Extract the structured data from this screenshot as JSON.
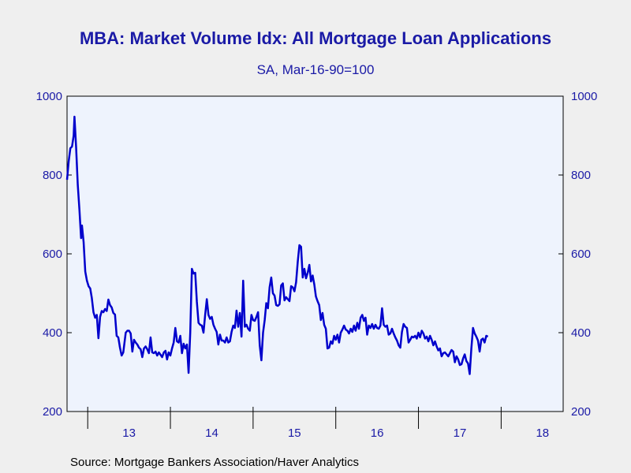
{
  "colors": {
    "background": "#efefef",
    "plot_area": "#eef3fd",
    "text": "#1a1aa6",
    "line": "#0000cc",
    "axis": "#000000"
  },
  "source": "Source:  Mortgage Bankers Association/Haver Analytics",
  "chart_data": {
    "type": "line",
    "title": "MBA: Market Volume Idx: All Mortgage Loan Applications",
    "subtitle": "SA, Mar-16-90=100",
    "xlabel": "",
    "ylabel": "",
    "x_range": [
      2012.75,
      2018.75
    ],
    "ylim": [
      200,
      1000
    ],
    "y_ticks": [
      200,
      400,
      600,
      800,
      1000
    ],
    "y_axis_sides": [
      "left",
      "right"
    ],
    "x_tick_labels": [
      "13",
      "14",
      "15",
      "16",
      "17",
      "18"
    ],
    "x_tick_positions": [
      2013.5,
      2014.5,
      2015.5,
      2016.5,
      2017.5,
      2018.5
    ],
    "x_year_boundaries": [
      2013,
      2014,
      2015,
      2016,
      2017,
      2018
    ],
    "grid": false,
    "legend": "none",
    "series": [
      {
        "color": "#0000cc",
        "points": [
          [
            2012.75,
            788
          ],
          [
            2012.77,
            835
          ],
          [
            2012.79,
            868
          ],
          [
            2012.81,
            872
          ],
          [
            2012.83,
            900
          ],
          [
            2012.84,
            948
          ],
          [
            2012.86,
            870
          ],
          [
            2012.88,
            775
          ],
          [
            2012.9,
            712
          ],
          [
            2012.92,
            640
          ],
          [
            2012.93,
            672
          ],
          [
            2012.95,
            630
          ],
          [
            2012.97,
            555
          ],
          [
            2012.99,
            532
          ],
          [
            2013.01,
            518
          ],
          [
            2013.03,
            512
          ],
          [
            2013.05,
            488
          ],
          [
            2013.07,
            452
          ],
          [
            2013.09,
            438
          ],
          [
            2013.11,
            445
          ],
          [
            2013.13,
            386
          ],
          [
            2013.15,
            440
          ],
          [
            2013.17,
            455
          ],
          [
            2013.19,
            452
          ],
          [
            2013.21,
            460
          ],
          [
            2013.23,
            455
          ],
          [
            2013.25,
            484
          ],
          [
            2013.27,
            470
          ],
          [
            2013.29,
            464
          ],
          [
            2013.31,
            450
          ],
          [
            2013.33,
            446
          ],
          [
            2013.35,
            392
          ],
          [
            2013.37,
            388
          ],
          [
            2013.39,
            362
          ],
          [
            2013.41,
            342
          ],
          [
            2013.43,
            350
          ],
          [
            2013.46,
            400
          ],
          [
            2013.48,
            405
          ],
          [
            2013.5,
            405
          ],
          [
            2013.52,
            398
          ],
          [
            2013.54,
            352
          ],
          [
            2013.56,
            382
          ],
          [
            2013.58,
            375
          ],
          [
            2013.6,
            370
          ],
          [
            2013.62,
            362
          ],
          [
            2013.64,
            358
          ],
          [
            2013.66,
            338
          ],
          [
            2013.68,
            360
          ],
          [
            2013.7,
            365
          ],
          [
            2013.72,
            358
          ],
          [
            2013.74,
            348
          ],
          [
            2013.76,
            388
          ],
          [
            2013.78,
            350
          ],
          [
            2013.8,
            348
          ],
          [
            2013.82,
            352
          ],
          [
            2013.84,
            342
          ],
          [
            2013.86,
            350
          ],
          [
            2013.88,
            344
          ],
          [
            2013.9,
            338
          ],
          [
            2013.92,
            350
          ],
          [
            2013.94,
            354
          ],
          [
            2013.96,
            332
          ],
          [
            2013.98,
            350
          ],
          [
            2014.0,
            342
          ],
          [
            2014.02,
            360
          ],
          [
            2014.04,
            375
          ],
          [
            2014.06,
            412
          ],
          [
            2014.08,
            378
          ],
          [
            2014.1,
            375
          ],
          [
            2014.12,
            392
          ],
          [
            2014.14,
            348
          ],
          [
            2014.16,
            372
          ],
          [
            2014.18,
            360
          ],
          [
            2014.2,
            370
          ],
          [
            2014.22,
            298
          ],
          [
            2014.24,
            400
          ],
          [
            2014.26,
            562
          ],
          [
            2014.28,
            550
          ],
          [
            2014.3,
            552
          ],
          [
            2014.32,
            478
          ],
          [
            2014.34,
            425
          ],
          [
            2014.36,
            420
          ],
          [
            2014.38,
            418
          ],
          [
            2014.4,
            400
          ],
          [
            2014.42,
            445
          ],
          [
            2014.44,
            485
          ],
          [
            2014.46,
            445
          ],
          [
            2014.48,
            435
          ],
          [
            2014.5,
            440
          ],
          [
            2014.52,
            420
          ],
          [
            2014.54,
            410
          ],
          [
            2014.56,
            402
          ],
          [
            2014.58,
            370
          ],
          [
            2014.6,
            395
          ],
          [
            2014.62,
            380
          ],
          [
            2014.64,
            380
          ],
          [
            2014.66,
            375
          ],
          [
            2014.68,
            388
          ],
          [
            2014.7,
            375
          ],
          [
            2014.72,
            378
          ],
          [
            2014.74,
            402
          ],
          [
            2014.76,
            418
          ],
          [
            2014.78,
            412
          ],
          [
            2014.8,
            456
          ],
          [
            2014.82,
            415
          ],
          [
            2014.84,
            450
          ],
          [
            2014.86,
            390
          ],
          [
            2014.88,
            532
          ],
          [
            2014.9,
            415
          ],
          [
            2014.92,
            420
          ],
          [
            2014.94,
            410
          ],
          [
            2014.96,
            405
          ],
          [
            2014.98,
            445
          ],
          [
            2015.0,
            432
          ],
          [
            2015.02,
            430
          ],
          [
            2015.04,
            440
          ],
          [
            2015.06,
            452
          ],
          [
            2015.08,
            368
          ],
          [
            2015.1,
            330
          ],
          [
            2015.12,
            400
          ],
          [
            2015.14,
            432
          ],
          [
            2015.16,
            475
          ],
          [
            2015.18,
            462
          ],
          [
            2015.2,
            515
          ],
          [
            2015.22,
            540
          ],
          [
            2015.24,
            500
          ],
          [
            2015.26,
            494
          ],
          [
            2015.28,
            470
          ],
          [
            2015.3,
            468
          ],
          [
            2015.32,
            472
          ],
          [
            2015.34,
            520
          ],
          [
            2015.36,
            525
          ],
          [
            2015.38,
            482
          ],
          [
            2015.4,
            490
          ],
          [
            2015.42,
            485
          ],
          [
            2015.44,
            480
          ],
          [
            2015.46,
            518
          ],
          [
            2015.48,
            515
          ],
          [
            2015.5,
            505
          ],
          [
            2015.52,
            528
          ],
          [
            2015.54,
            580
          ],
          [
            2015.56,
            622
          ],
          [
            2015.58,
            618
          ],
          [
            2015.6,
            540
          ],
          [
            2015.62,
            562
          ],
          [
            2015.64,
            538
          ],
          [
            2015.66,
            552
          ],
          [
            2015.68,
            572
          ],
          [
            2015.7,
            530
          ],
          [
            2015.72,
            545
          ],
          [
            2015.74,
            522
          ],
          [
            2015.76,
            492
          ],
          [
            2015.78,
            480
          ],
          [
            2015.8,
            470
          ],
          [
            2015.82,
            432
          ],
          [
            2015.84,
            450
          ],
          [
            2015.86,
            420
          ],
          [
            2015.88,
            410
          ],
          [
            2015.9,
            360
          ],
          [
            2015.92,
            362
          ],
          [
            2015.94,
            378
          ],
          [
            2015.96,
            372
          ],
          [
            2015.98,
            392
          ],
          [
            2016.0,
            382
          ],
          [
            2016.02,
            395
          ],
          [
            2016.04,
            375
          ],
          [
            2016.06,
            400
          ],
          [
            2016.08,
            408
          ],
          [
            2016.1,
            418
          ],
          [
            2016.12,
            408
          ],
          [
            2016.14,
            405
          ],
          [
            2016.16,
            398
          ],
          [
            2016.18,
            410
          ],
          [
            2016.2,
            402
          ],
          [
            2016.22,
            418
          ],
          [
            2016.24,
            405
          ],
          [
            2016.26,
            425
          ],
          [
            2016.28,
            410
          ],
          [
            2016.3,
            438
          ],
          [
            2016.32,
            445
          ],
          [
            2016.34,
            430
          ],
          [
            2016.36,
            438
          ],
          [
            2016.38,
            395
          ],
          [
            2016.4,
            418
          ],
          [
            2016.42,
            412
          ],
          [
            2016.44,
            422
          ],
          [
            2016.46,
            410
          ],
          [
            2016.48,
            420
          ],
          [
            2016.5,
            412
          ],
          [
            2016.52,
            410
          ],
          [
            2016.54,
            418
          ],
          [
            2016.56,
            462
          ],
          [
            2016.58,
            420
          ],
          [
            2016.6,
            415
          ],
          [
            2016.62,
            418
          ],
          [
            2016.64,
            395
          ],
          [
            2016.66,
            398
          ],
          [
            2016.68,
            410
          ],
          [
            2016.7,
            398
          ],
          [
            2016.72,
            388
          ],
          [
            2016.74,
            380
          ],
          [
            2016.76,
            368
          ],
          [
            2016.78,
            362
          ],
          [
            2016.8,
            402
          ],
          [
            2016.82,
            422
          ],
          [
            2016.84,
            415
          ],
          [
            2016.86,
            412
          ],
          [
            2016.88,
            375
          ],
          [
            2016.9,
            382
          ],
          [
            2016.92,
            390
          ],
          [
            2016.94,
            388
          ],
          [
            2016.96,
            392
          ],
          [
            2016.98,
            385
          ],
          [
            2017.0,
            400
          ],
          [
            2017.02,
            388
          ],
          [
            2017.04,
            405
          ],
          [
            2017.06,
            398
          ],
          [
            2017.08,
            385
          ],
          [
            2017.1,
            390
          ],
          [
            2017.12,
            378
          ],
          [
            2017.14,
            392
          ],
          [
            2017.16,
            382
          ],
          [
            2017.18,
            368
          ],
          [
            2017.2,
            378
          ],
          [
            2017.22,
            365
          ],
          [
            2017.24,
            355
          ],
          [
            2017.26,
            360
          ],
          [
            2017.28,
            340
          ],
          [
            2017.3,
            348
          ],
          [
            2017.32,
            350
          ],
          [
            2017.34,
            345
          ],
          [
            2017.36,
            340
          ],
          [
            2017.38,
            348
          ],
          [
            2017.4,
            356
          ],
          [
            2017.42,
            352
          ],
          [
            2017.44,
            325
          ],
          [
            2017.46,
            340
          ],
          [
            2017.48,
            332
          ],
          [
            2017.5,
            318
          ],
          [
            2017.52,
            320
          ],
          [
            2017.54,
            335
          ],
          [
            2017.56,
            345
          ],
          [
            2017.58,
            328
          ],
          [
            2017.6,
            322
          ],
          [
            2017.62,
            295
          ],
          [
            2017.64,
            360
          ],
          [
            2017.66,
            412
          ],
          [
            2017.68,
            398
          ],
          [
            2017.7,
            390
          ],
          [
            2017.72,
            380
          ],
          [
            2017.74,
            352
          ],
          [
            2017.76,
            382
          ],
          [
            2017.78,
            385
          ],
          [
            2017.8,
            375
          ],
          [
            2017.82,
            392
          ],
          [
            2017.84,
            390
          ]
        ]
      }
    ]
  }
}
